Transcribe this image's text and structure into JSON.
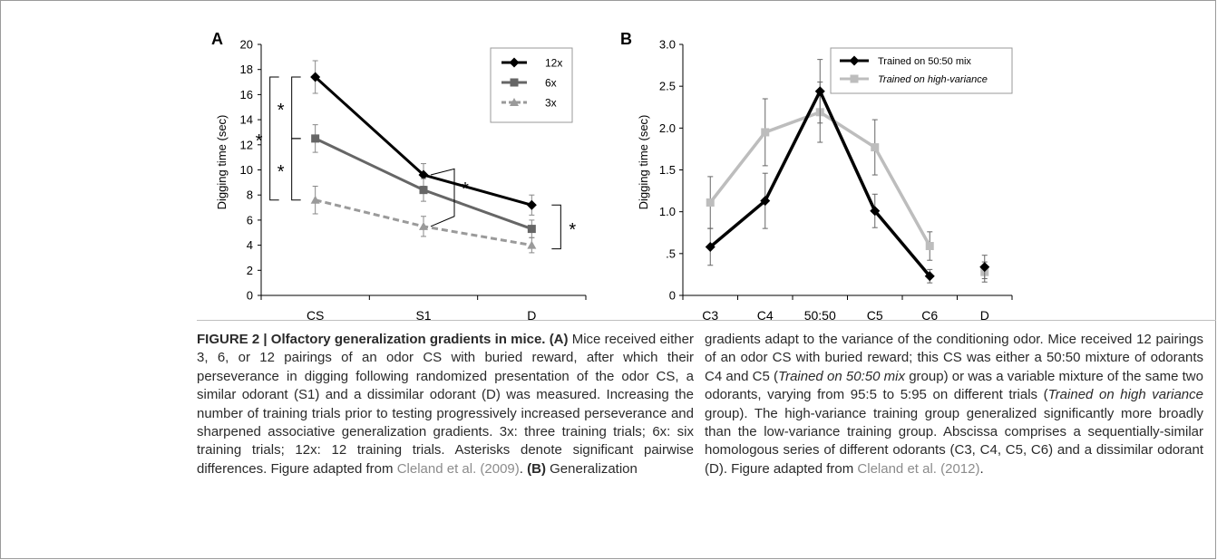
{
  "figure": {
    "panel_a_letter": "A",
    "panel_b_letter": "B"
  },
  "chart_data": [
    {
      "type": "line",
      "panel": "A",
      "ylabel": "Digging time (sec)",
      "xlabel": "",
      "categories": [
        "CS",
        "S1",
        "D"
      ],
      "ylim": [
        0,
        20
      ],
      "yticks": [
        "0",
        "2",
        "4",
        "6",
        "8",
        "10",
        "12",
        "14",
        "16",
        "18",
        "20"
      ],
      "legend_position": "top-right",
      "series": [
        {
          "name": "12x",
          "values": [
            17.4,
            9.6,
            7.2
          ],
          "errors": [
            1.3,
            0.9,
            0.8
          ],
          "color": "#000000",
          "marker": "diamond",
          "dash": false
        },
        {
          "name": "6x",
          "values": [
            12.5,
            8.4,
            5.3
          ],
          "errors": [
            1.1,
            0.9,
            0.7
          ],
          "color": "#666666",
          "marker": "square",
          "dash": false
        },
        {
          "name": "3x",
          "values": [
            7.6,
            5.5,
            4.0
          ],
          "errors": [
            1.1,
            0.8,
            0.6
          ],
          "color": "#9a9a9a",
          "marker": "triangle",
          "dash": true
        }
      ],
      "significance_marks": [
        "*",
        "*",
        "*",
        "*",
        "*"
      ]
    },
    {
      "type": "line",
      "panel": "B",
      "ylabel": "Digging time (sec)",
      "xlabel": "",
      "categories": [
        "C3",
        "C4",
        "50:50",
        "C5",
        "C6",
        "D"
      ],
      "ylim": [
        0,
        3.0
      ],
      "yticks": [
        "0",
        ".5",
        "1.0",
        "1.5",
        "2.0",
        "2.5",
        "3.0"
      ],
      "legend_position": "top-right",
      "series": [
        {
          "name": "Trained on 50:50 mix",
          "values": [
            0.58,
            1.13,
            2.44,
            1.01,
            0.23,
            0.34
          ],
          "errors": [
            0.22,
            0.33,
            0.38,
            0.2,
            0.08,
            0.14
          ],
          "color": "#000000",
          "marker": "diamond",
          "italic": false
        },
        {
          "name": "Trained on high-variance",
          "values": [
            1.11,
            1.95,
            2.19,
            1.77,
            0.59,
            0.28
          ],
          "errors": [
            0.31,
            0.4,
            0.36,
            0.33,
            0.17,
            0.12
          ],
          "color": "#bdbdbd",
          "marker": "square",
          "italic": true
        }
      ]
    }
  ],
  "caption": {
    "left": {
      "label": "FIGURE 2 | Olfactory generalization gradients in mice.",
      "label_a": "(A)",
      "text1": " Mice received either 3, 6, or 12 pairings of an odor CS with buried reward, after which their perseverance in digging following randomized presentation of the odor CS, a similar odorant (S1) and a dissimilar odorant (D) was measured. Increasing the number of training trials prior to testing progressively increased perseverance and sharpened associative generalization gradients. 3x: three training trials; 6x: six training trials; 12x: 12 training trials. Asterisks denote significant pairwise differences. Figure adapted from ",
      "ref1": "Cleland et al. (2009)",
      "text2": ". ",
      "label_b": "(B)",
      "text3": " Generalization"
    },
    "right": {
      "text1": "gradients adapt to the variance of the conditioning odor. Mice received 12 pairings of an odor CS with buried reward; this CS was either a 50:50 mixture of odorants C4 and C5 (",
      "it1": "Trained on 50:50 mix",
      "text2": " group) or was a variable mixture of the same two odorants, varying from 95:5 to 5:95 on different trials (",
      "it2": "Trained on high variance",
      "text3": " group). The high-variance training group generalized significantly more broadly than the low-variance training group. Abscissa comprises a sequentially-similar homologous series of different odorants (C3, C4, C5, C6) and a dissimilar odorant (D). Figure adapted from ",
      "ref2": "Cleland et al. (2012)",
      "text4": "."
    }
  }
}
